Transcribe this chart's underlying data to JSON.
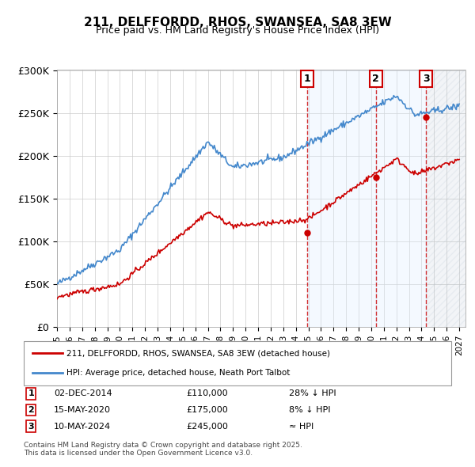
{
  "title": "211, DELFFORDD, RHOS, SWANSEA, SA8 3EW",
  "subtitle": "Price paid vs. HM Land Registry's House Price Index (HPI)",
  "ylabel": "",
  "xlabel": "",
  "ylim": [
    0,
    300000
  ],
  "yticks": [
    0,
    50000,
    100000,
    150000,
    200000,
    250000,
    300000
  ],
  "ytick_labels": [
    "£0",
    "£50K",
    "£100K",
    "£150K",
    "£200K",
    "£250K",
    "£300K"
  ],
  "xmin": 1995.0,
  "xmax": 2027.5,
  "transactions": [
    {
      "num": 1,
      "date": "02-DEC-2014",
      "price": 110000,
      "x": 2014.92,
      "note": "28% ↓ HPI"
    },
    {
      "num": 2,
      "date": "15-MAY-2020",
      "price": 175000,
      "x": 2020.37,
      "note": "8% ↓ HPI"
    },
    {
      "num": 3,
      "date": "10-MAY-2024",
      "price": 245000,
      "x": 2024.37,
      "note": "≈ HPI"
    }
  ],
  "legend_line1": "211, DELFFORDD, RHOS, SWANSEA, SA8 3EW (detached house)",
  "legend_line2": "HPI: Average price, detached house, Neath Port Talbot",
  "footer": "Contains HM Land Registry data © Crown copyright and database right 2025.\nThis data is licensed under the Open Government Licence v3.0.",
  "red_color": "#cc0000",
  "blue_color": "#4488cc",
  "shading_color": "#ddeeff",
  "hatch_color": "#aabbcc"
}
